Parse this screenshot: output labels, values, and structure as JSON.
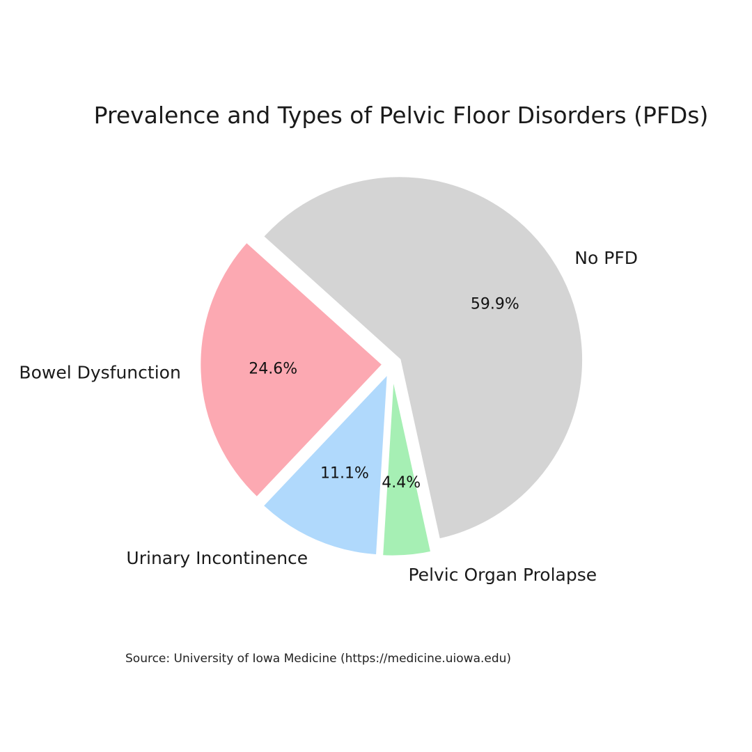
{
  "chart_data": {
    "type": "pie",
    "title": "Prevalence and Types of Pelvic Floor Disorders (PFDs)",
    "source_note": "Source: University of Iowa Medicine (https://medicine.uiowa.edu)",
    "slices": [
      {
        "label": "Bowel Dysfunction",
        "value": 24.6,
        "pct_label": "24.6%",
        "color": "#fca9b2"
      },
      {
        "label": "Urinary Incontinence",
        "value": 11.1,
        "pct_label": "11.1%",
        "color": "#b0d9fc"
      },
      {
        "label": "Pelvic Organ Prolapse",
        "value": 4.4,
        "pct_label": "4.4%",
        "color": "#a6efb4"
      },
      {
        "label": "No PFD",
        "value": 59.9,
        "pct_label": "59.9%",
        "color": "#d4d4d4"
      }
    ],
    "start_angle": 138,
    "counterclock": true,
    "explode": 0.045,
    "pct_distance": 0.6,
    "label_distance": 1.1,
    "legend": "none",
    "background": "#ffffff",
    "wedge_edge_color": "#ffffff",
    "text_color": "#1a1a1a"
  }
}
